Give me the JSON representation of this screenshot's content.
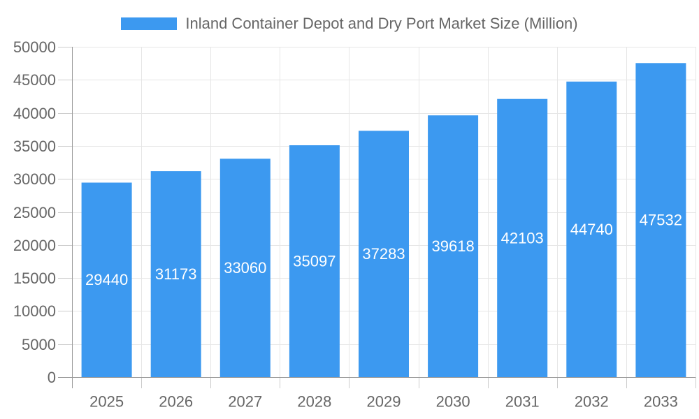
{
  "legend": {
    "label": "Inland Container Depot and Dry Port Market Size (Million)"
  },
  "chart_data": {
    "type": "bar",
    "title": "Inland Container Depot and Dry Port Market Size (Million)",
    "categories": [
      "2025",
      "2026",
      "2027",
      "2028",
      "2029",
      "2030",
      "2031",
      "2032",
      "2033"
    ],
    "values": [
      29440,
      31173,
      33060,
      35097,
      37283,
      39618,
      42103,
      44740,
      47532
    ],
    "xlabel": "",
    "ylabel": "",
    "ylim": [
      0,
      50000
    ],
    "ytick_step": 5000,
    "ytick_labels": [
      "0",
      "5000",
      "10000",
      "15000",
      "20000",
      "25000",
      "30000",
      "35000",
      "40000",
      "45000",
      "50000"
    ],
    "grid": true,
    "legend_position": "top-center",
    "value_labels": "inside-center",
    "colors": {
      "bar": "#3C99F0",
      "value_label": "#ffffff",
      "axis_text": "#666666",
      "grid_line": "#e6e6e6",
      "tick_line": "#cccccc",
      "axis_line": "#999999",
      "background": "#ffffff"
    }
  }
}
